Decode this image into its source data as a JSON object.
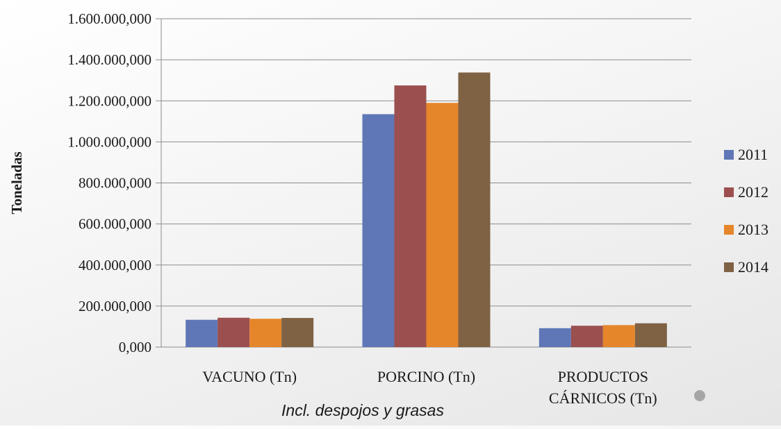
{
  "chart_data": {
    "type": "bar",
    "title": "",
    "xlabel": "",
    "ylabel": "Toneladas",
    "ylim": [
      0,
      1600000000
    ],
    "yticks": [
      0,
      200000000,
      400000000,
      600000000,
      800000000,
      1000000000,
      1200000000,
      1400000000,
      1600000000
    ],
    "ytick_labels": [
      "0,000",
      "200.000,000",
      "400.000,000",
      "600.000,000",
      "800.000,000",
      "1.000.000,000",
      "1.200.000,000",
      "1.400.000,000",
      "1.600.000,000"
    ],
    "categories": [
      "VACUNO (Tn)",
      "PORCINO (Tn)",
      "PRODUCTOS CÁRNICOS (Tn)"
    ],
    "category_lines": [
      [
        "VACUNO (Tn)"
      ],
      [
        "PORCINO (Tn)"
      ],
      [
        "PRODUCTOS",
        "CÁRNICOS (Tn)"
      ]
    ],
    "series": [
      {
        "name": "2011",
        "color": "#5f77b6",
        "values": [
          133000000,
          1135000000,
          92000000
        ]
      },
      {
        "name": "2012",
        "color": "#9b4f4f",
        "values": [
          143000000,
          1275000000,
          104000000
        ]
      },
      {
        "name": "2013",
        "color": "#e5862a",
        "values": [
          138000000,
          1190000000,
          107000000
        ]
      },
      {
        "name": "2014",
        "color": "#7f6144",
        "values": [
          142000000,
          1338000000,
          116000000
        ]
      }
    ],
    "grid": true,
    "legend": "right"
  },
  "footnote": "Incl. despojos y grasas"
}
